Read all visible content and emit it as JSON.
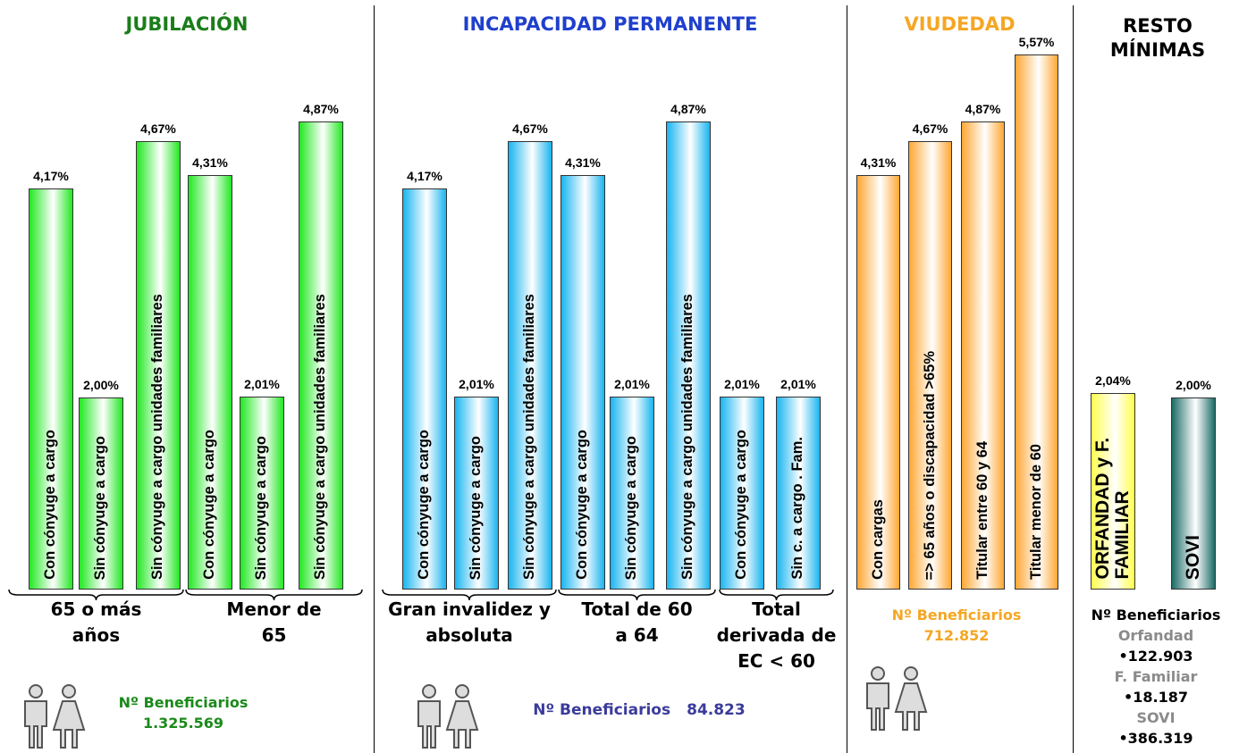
{
  "chart_data": [
    {
      "type": "bar",
      "title": "JUBILACIÓN",
      "color": "#22e822",
      "groups": [
        {
          "label": "65 o más años",
          "categories": [
            "Con cónyuge a cargo",
            "Sin cónyuge a cargo",
            "Sin cónyuge a cargo unidades familiares"
          ],
          "values": [
            4.17,
            2.0,
            4.67
          ],
          "value_labels": [
            "4,17%",
            "2,00%",
            "4,67%"
          ]
        },
        {
          "label": "Menor de 65",
          "categories": [
            "Con cónyuge a cargo",
            "Sin cónyuge a cargo",
            "Sin cónyuge a cargo unidades familiares"
          ],
          "values": [
            4.31,
            2.01,
            4.87
          ],
          "value_labels": [
            "4,31%",
            "2,01%",
            "4,87%"
          ]
        }
      ],
      "beneficiaries": {
        "label": "Nº Beneficiarios",
        "value": "1.325.569"
      }
    },
    {
      "type": "bar",
      "title": "INCAPACIDAD PERMANENTE",
      "color": "#19b5f0",
      "groups": [
        {
          "label": "Gran invalidez y absoluta",
          "categories": [
            "Con cónyuge a cargo",
            "Sin cónyuge a cargo",
            "Sin cónyuge a cargo unidades familiares"
          ],
          "values": [
            4.17,
            2.01,
            4.67
          ],
          "value_labels": [
            "4,17%",
            "2,01%",
            "4,67%"
          ]
        },
        {
          "label": "Total de 60 a 64",
          "categories": [
            "Con cónyuge a cargo",
            "Sin cónyuge a cargo",
            "Sin cónyuge a cargo unidades familiares"
          ],
          "values": [
            4.31,
            2.01,
            4.87
          ],
          "value_labels": [
            "4,31%",
            "2,01%",
            "4,87%"
          ]
        },
        {
          "label": "Total derivada de EC < 60",
          "categories": [
            "Con cónyuge a cargo",
            "Sin c. a cargo . Fam."
          ],
          "values": [
            2.01,
            2.01
          ],
          "value_labels": [
            "2,01%",
            "2,01%"
          ]
        }
      ],
      "beneficiaries": {
        "label": "Nº Beneficiarios",
        "value": "84.823"
      }
    },
    {
      "type": "bar",
      "title": "VIUDEDAD",
      "color": "#ffa733",
      "groups": [
        {
          "categories": [
            "Con cargas",
            "=> 65 años o discapacidad >65%",
            "Titular entre 60 y 64",
            "Titular menor de 60"
          ],
          "values": [
            4.31,
            4.67,
            4.87,
            5.57
          ],
          "value_labels": [
            "4,31%",
            "4,67%",
            "4,87%",
            "5,57%"
          ]
        }
      ],
      "beneficiaries": {
        "label": "Nº Beneficiarios",
        "value": "712.852"
      }
    },
    {
      "type": "bar",
      "title": "RESTO MÍNIMAS",
      "colors": [
        "#ffff4d",
        "#1c6b66"
      ],
      "groups": [
        {
          "categories": [
            "ORFANDAD y F. FAMILIAR",
            "SOVI"
          ],
          "values": [
            2.04,
            2.0
          ],
          "value_labels": [
            "2,04%",
            "2,00%"
          ]
        }
      ],
      "beneficiaries": {
        "label": "Nº Beneficiarios",
        "items": [
          {
            "name": "Orfandad",
            "value": "•122.903"
          },
          {
            "name": "F. Familiar",
            "value": "•18.187"
          },
          {
            "name": "SOVI",
            "value": "•386.319"
          }
        ]
      }
    }
  ]
}
